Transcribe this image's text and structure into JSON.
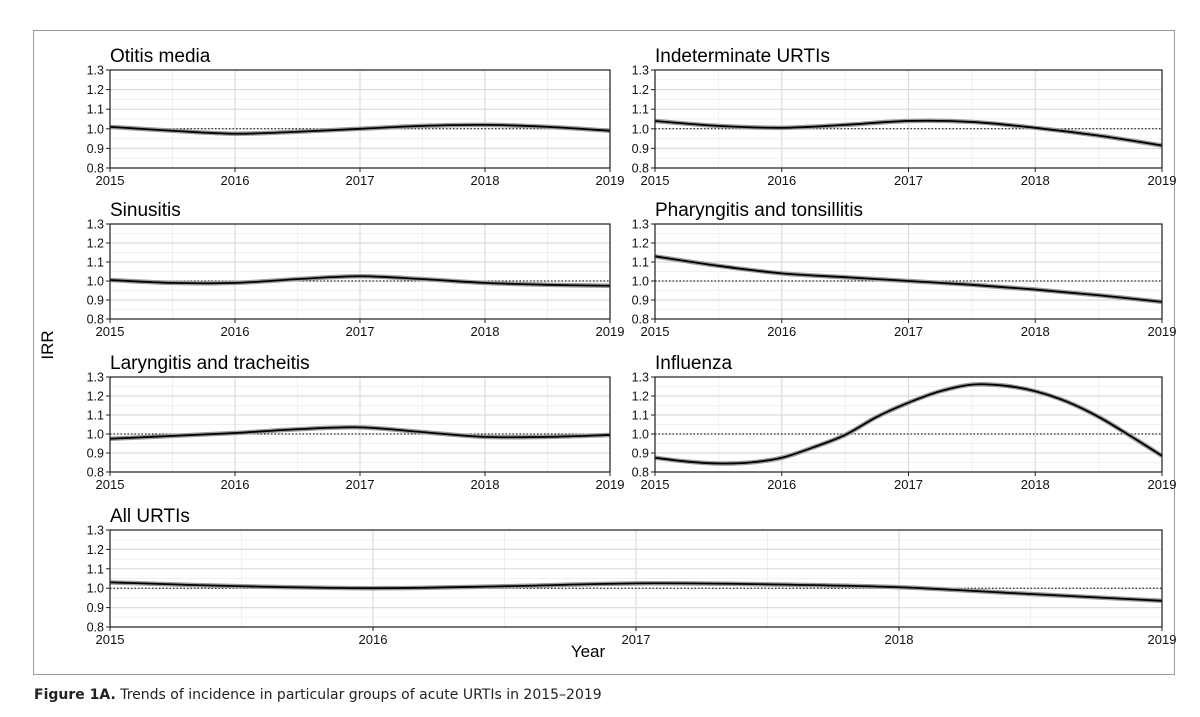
{
  "figure": {
    "caption_label": "Figure 1A.",
    "caption_text": "Trends of incidence in particular groups of acute URTIs in 2015–2019",
    "y_axis_title": "IRR",
    "x_axis_title": "Year"
  },
  "chart_data": [
    {
      "type": "line",
      "title": "Otitis media",
      "x": [
        2015,
        2015.5,
        2016,
        2016.5,
        2017,
        2017.5,
        2018,
        2018.5,
        2019
      ],
      "y": [
        1.01,
        0.99,
        0.975,
        0.985,
        1.0,
        1.015,
        1.02,
        1.01,
        0.99
      ],
      "xlim": [
        2015,
        2019
      ],
      "ylim": [
        0.8,
        1.3
      ],
      "x_ticks": [
        "2015",
        "2016",
        "2017",
        "2018",
        "2019"
      ],
      "y_ticks": [
        "0.8",
        "0.9",
        "1.0",
        "1.1",
        "1.2",
        "1.3"
      ],
      "reference_line": 1.0,
      "grid": true
    },
    {
      "type": "line",
      "title": "Indeterminate URTIs",
      "x": [
        2015,
        2015.5,
        2016,
        2016.5,
        2017,
        2017.5,
        2018,
        2018.5,
        2019
      ],
      "y": [
        1.04,
        1.015,
        1.005,
        1.02,
        1.04,
        1.035,
        1.005,
        0.965,
        0.915
      ],
      "xlim": [
        2015,
        2019
      ],
      "ylim": [
        0.8,
        1.3
      ],
      "x_ticks": [
        "2015",
        "2016",
        "2017",
        "2018",
        "2019"
      ],
      "y_ticks": [
        "0.8",
        "0.9",
        "1.0",
        "1.1",
        "1.2",
        "1.3"
      ],
      "reference_line": 1.0,
      "grid": true
    },
    {
      "type": "line",
      "title": "Sinusitis",
      "x": [
        2015,
        2015.5,
        2016,
        2016.5,
        2017,
        2017.5,
        2018,
        2018.5,
        2019
      ],
      "y": [
        1.005,
        0.99,
        0.99,
        1.01,
        1.025,
        1.01,
        0.99,
        0.98,
        0.975
      ],
      "xlim": [
        2015,
        2019
      ],
      "ylim": [
        0.8,
        1.3
      ],
      "x_ticks": [
        "2015",
        "2016",
        "2017",
        "2018",
        "2019"
      ],
      "y_ticks": [
        "0.8",
        "0.9",
        "1.0",
        "1.1",
        "1.2",
        "1.3"
      ],
      "reference_line": 1.0,
      "grid": true
    },
    {
      "type": "line",
      "title": "Pharyngitis and tonsillitis",
      "x": [
        2015,
        2015.5,
        2016,
        2016.5,
        2017,
        2017.5,
        2018,
        2018.5,
        2019
      ],
      "y": [
        1.13,
        1.08,
        1.04,
        1.02,
        1.0,
        0.98,
        0.955,
        0.925,
        0.89
      ],
      "xlim": [
        2015,
        2019
      ],
      "ylim": [
        0.8,
        1.3
      ],
      "x_ticks": [
        "2015",
        "2016",
        "2017",
        "2018",
        "2019"
      ],
      "y_ticks": [
        "0.8",
        "0.9",
        "1.0",
        "1.1",
        "1.2",
        "1.3"
      ],
      "reference_line": 1.0,
      "grid": true
    },
    {
      "type": "line",
      "title": "Laryngitis and tracheitis",
      "x": [
        2015,
        2015.5,
        2016,
        2016.5,
        2017,
        2017.5,
        2018,
        2018.5,
        2019
      ],
      "y": [
        0.975,
        0.99,
        1.005,
        1.025,
        1.035,
        1.01,
        0.985,
        0.985,
        0.995
      ],
      "xlim": [
        2015,
        2019
      ],
      "ylim": [
        0.8,
        1.3
      ],
      "x_ticks": [
        "2015",
        "2016",
        "2017",
        "2018",
        "2019"
      ],
      "y_ticks": [
        "0.8",
        "0.9",
        "1.0",
        "1.1",
        "1.2",
        "1.3"
      ],
      "reference_line": 1.0,
      "grid": true
    },
    {
      "type": "line",
      "title": "Influenza",
      "x": [
        2015,
        2015.25,
        2015.5,
        2015.75,
        2016,
        2016.25,
        2016.5,
        2016.75,
        2017,
        2017.25,
        2017.5,
        2017.75,
        2018,
        2018.25,
        2018.5,
        2018.75,
        2019
      ],
      "y": [
        0.875,
        0.855,
        0.845,
        0.85,
        0.875,
        0.93,
        0.995,
        1.09,
        1.165,
        1.225,
        1.26,
        1.255,
        1.225,
        1.17,
        1.09,
        0.99,
        0.885
      ],
      "xlim": [
        2015,
        2019
      ],
      "ylim": [
        0.8,
        1.3
      ],
      "x_ticks": [
        "2015",
        "2016",
        "2017",
        "2018",
        "2019"
      ],
      "y_ticks": [
        "0.8",
        "0.9",
        "1.0",
        "1.1",
        "1.2",
        "1.3"
      ],
      "reference_line": 1.0,
      "grid": true
    },
    {
      "type": "line",
      "title": "All URTIs",
      "x": [
        2015,
        2015.5,
        2016,
        2016.5,
        2017,
        2017.5,
        2018,
        2018.5,
        2019
      ],
      "y": [
        1.03,
        1.01,
        1.0,
        1.01,
        1.025,
        1.02,
        1.005,
        0.97,
        0.935
      ],
      "xlim": [
        2015,
        2019
      ],
      "ylim": [
        0.8,
        1.3
      ],
      "x_ticks": [
        "2015",
        "2016",
        "2017",
        "2018",
        "2019"
      ],
      "y_ticks": [
        "0.8",
        "0.9",
        "1.0",
        "1.1",
        "1.2",
        "1.3"
      ],
      "reference_line": 1.0,
      "grid": true
    }
  ]
}
